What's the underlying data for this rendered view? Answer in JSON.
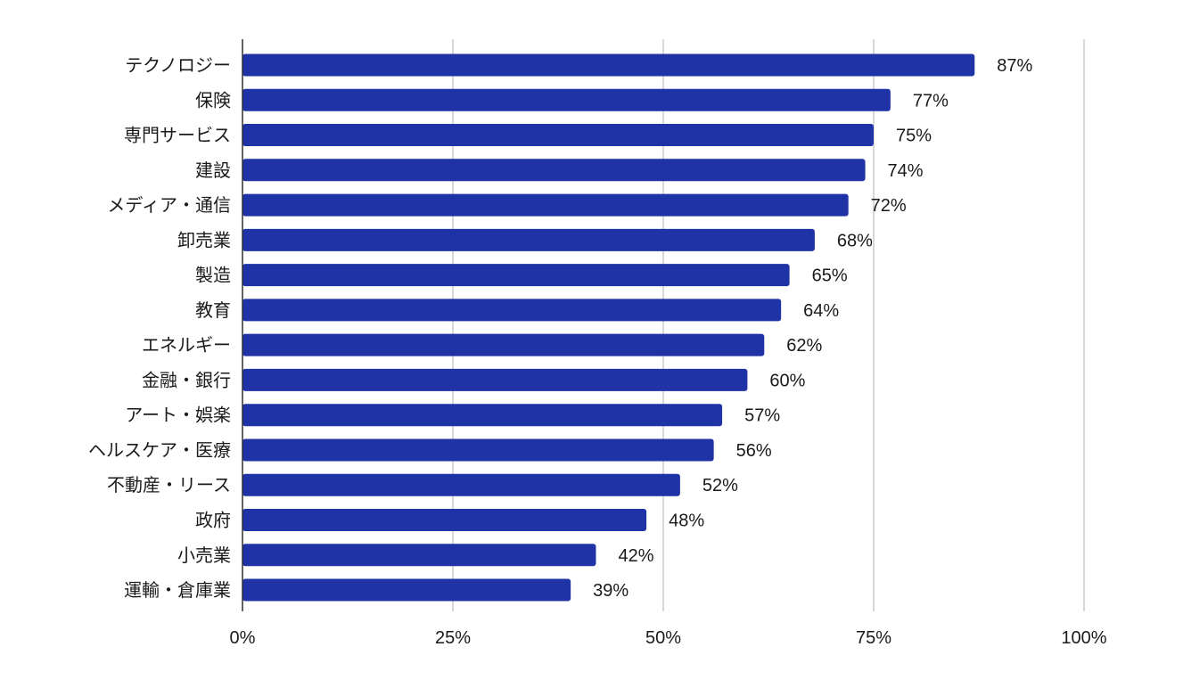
{
  "chart_data": {
    "type": "bar",
    "orientation": "horizontal",
    "categories": [
      "テクノロジー",
      "保険",
      "専門サービス",
      "建設",
      "メディア・通信",
      "卸売業",
      "製造",
      "教育",
      "エネルギー",
      "金融・銀行",
      "アート・娯楽",
      "ヘルスケア・医療",
      "不動産・リース",
      "政府",
      "小売業",
      "運輸・倉庫業"
    ],
    "values": [
      87,
      77,
      75,
      74,
      72,
      68,
      65,
      64,
      62,
      60,
      57,
      56,
      52,
      48,
      42,
      39
    ],
    "value_labels": [
      "87%",
      "77%",
      "75%",
      "74%",
      "72%",
      "68%",
      "65%",
      "64%",
      "62%",
      "60%",
      "57%",
      "56%",
      "52%",
      "48%",
      "42%",
      "39%"
    ],
    "xlim": [
      0,
      100
    ],
    "x_ticks": [
      0,
      25,
      50,
      75,
      100
    ],
    "x_tick_labels": [
      "0%",
      "25%",
      "50%",
      "75%",
      "100%"
    ],
    "grid": true,
    "legend": "none",
    "title": "",
    "xlabel": "",
    "ylabel": "",
    "colors": {
      "bar": "#1f33a6",
      "grid": "#cccccc",
      "axis": "#333333",
      "text": "#1a1a1a"
    }
  }
}
